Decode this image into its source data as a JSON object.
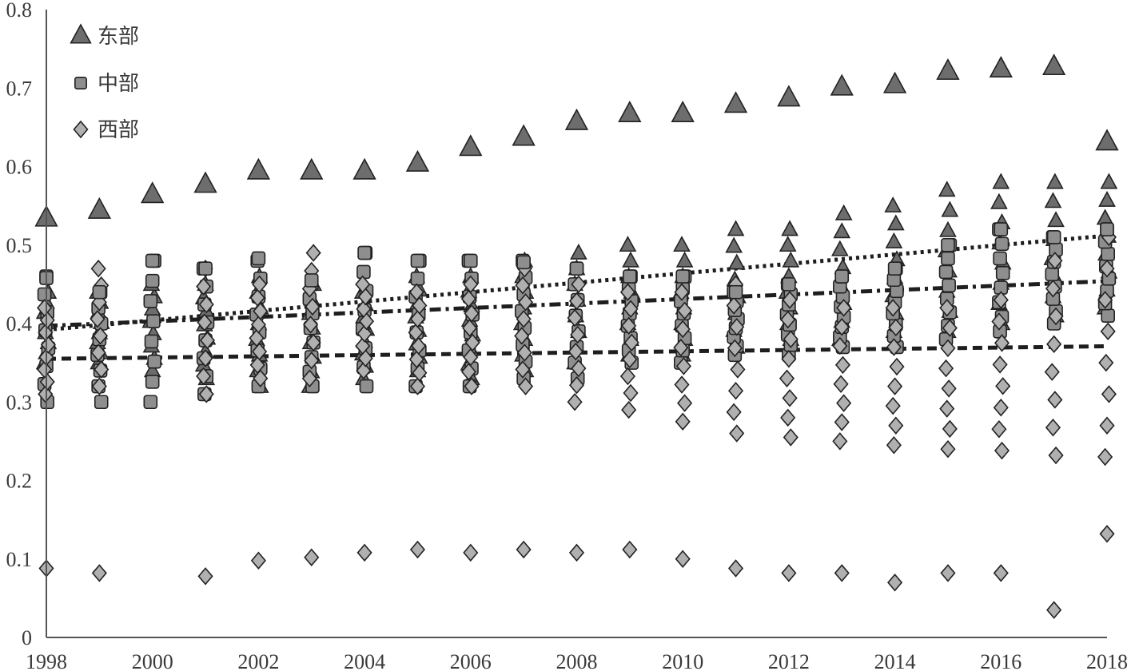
{
  "chart_data": {
    "type": "scatter",
    "title": "",
    "xlabel": "",
    "ylabel": "",
    "x_ticks": [
      "1998",
      "2000",
      "2002",
      "2004",
      "2006",
      "2008",
      "2010",
      "2012",
      "2014",
      "2016",
      "2018"
    ],
    "y_ticks": [
      "0",
      "0.1",
      "0.2",
      "0.3",
      "0.4",
      "0.5",
      "0.6",
      "0.7",
      "0.8"
    ],
    "xlim": [
      1998,
      2018
    ],
    "ylim": [
      0,
      0.8
    ],
    "grid": false,
    "legend_position": "top-left",
    "legend": [
      {
        "label": "东部",
        "marker": "triangle"
      },
      {
        "label": "中部",
        "marker": "square"
      },
      {
        "label": "西部",
        "marker": "diamond"
      }
    ],
    "colors": {
      "east": "#6d6d6d",
      "central": "#8e8e8e",
      "west": "#b0b0b0",
      "stroke": "#222222",
      "trend": "#1e1e1e"
    },
    "series": [
      {
        "name": "东部",
        "marker": "triangle",
        "x": [
          1998,
          1999,
          2000,
          2001,
          2002,
          2003,
          2004,
          2005,
          2006,
          2007,
          2008,
          2009,
          2010,
          2011,
          2012,
          2013,
          2014,
          2015,
          2016,
          2017,
          2018
        ],
        "values": [
          0.535,
          0.545,
          0.565,
          0.578,
          0.595,
          0.595,
          0.595,
          0.605,
          0.625,
          0.638,
          0.658,
          0.668,
          0.668,
          0.68,
          0.688,
          0.702,
          0.705,
          0.722,
          0.725,
          0.728,
          0.632
        ],
        "spread": [
          [
            0.35,
            0.44
          ],
          [
            0.35,
            0.44
          ],
          [
            0.34,
            0.45
          ],
          [
            0.33,
            0.45
          ],
          [
            0.32,
            0.46
          ],
          [
            0.32,
            0.45
          ],
          [
            0.33,
            0.44
          ],
          [
            0.34,
            0.46
          ],
          [
            0.33,
            0.46
          ],
          [
            0.34,
            0.48
          ],
          [
            0.35,
            0.49
          ],
          [
            0.36,
            0.5
          ],
          [
            0.36,
            0.5
          ],
          [
            0.37,
            0.52
          ],
          [
            0.38,
            0.52
          ],
          [
            0.38,
            0.54
          ],
          [
            0.39,
            0.55
          ],
          [
            0.39,
            0.57
          ],
          [
            0.4,
            0.58
          ],
          [
            0.41,
            0.58
          ],
          [
            0.42,
            0.58
          ]
        ]
      },
      {
        "name": "中部",
        "marker": "square",
        "x": [
          1998,
          1999,
          2000,
          2001,
          2002,
          2003,
          2004,
          2005,
          2006,
          2007,
          2008,
          2009,
          2010,
          2011,
          2012,
          2013,
          2014,
          2015,
          2016,
          2017,
          2018
        ],
        "values": [
          0.458,
          0.44,
          0.48,
          0.47,
          0.483,
          0.455,
          0.49,
          0.48,
          0.48,
          0.478,
          0.47,
          0.46,
          0.46,
          0.44,
          0.45,
          0.46,
          0.47,
          0.5,
          0.52,
          0.51,
          0.52
        ],
        "spread": [
          [
            0.3,
            0.46
          ],
          [
            0.3,
            0.44
          ],
          [
            0.3,
            0.48
          ],
          [
            0.31,
            0.47
          ],
          [
            0.32,
            0.48
          ],
          [
            0.32,
            0.45
          ],
          [
            0.32,
            0.49
          ],
          [
            0.32,
            0.48
          ],
          [
            0.32,
            0.48
          ],
          [
            0.33,
            0.48
          ],
          [
            0.33,
            0.47
          ],
          [
            0.35,
            0.46
          ],
          [
            0.35,
            0.46
          ],
          [
            0.36,
            0.44
          ],
          [
            0.36,
            0.45
          ],
          [
            0.37,
            0.46
          ],
          [
            0.37,
            0.47
          ],
          [
            0.38,
            0.5
          ],
          [
            0.39,
            0.52
          ],
          [
            0.4,
            0.51
          ],
          [
            0.41,
            0.52
          ]
        ]
      },
      {
        "name": "西部",
        "marker": "diamond",
        "x": [
          1998,
          1999,
          2001,
          2002,
          2003,
          2004,
          2005,
          2006,
          2007,
          2008,
          2009,
          2010,
          2011,
          2012,
          2013,
          2014,
          2015,
          2016,
          2017,
          2018
        ],
        "values": [
          0.088,
          0.082,
          0.078,
          0.098,
          0.102,
          0.108,
          0.112,
          0.108,
          0.112,
          0.108,
          0.112,
          0.1,
          0.088,
          0.082,
          0.082,
          0.07,
          0.082,
          0.082,
          0.035,
          0.132
        ],
        "spread": [
          [
            0.31,
            0.42
          ],
          [
            0.32,
            0.47
          ],
          [
            0.31,
            0.47
          ],
          [
            0.33,
            0.45
          ],
          [
            0.33,
            0.49
          ],
          [
            0.34,
            0.45
          ],
          [
            0.32,
            0.44
          ],
          [
            0.32,
            0.45
          ],
          [
            0.32,
            0.47
          ],
          [
            0.3,
            0.45
          ],
          [
            0.29,
            0.44
          ],
          [
            0.275,
            0.44
          ],
          [
            0.26,
            0.45
          ],
          [
            0.255,
            0.43
          ],
          [
            0.25,
            0.42
          ],
          [
            0.245,
            0.42
          ],
          [
            0.24,
            0.42
          ],
          [
            0.238,
            0.43
          ],
          [
            0.232,
            0.48
          ],
          [
            0.23,
            0.51
          ]
        ]
      }
    ],
    "trendlines": [
      {
        "name": "东部",
        "style": "dotted",
        "x": [
          1998,
          2018
        ],
        "values": [
          0.392,
          0.512
        ]
      },
      {
        "name": "中部",
        "style": "dash-dot",
        "x": [
          1998,
          2018
        ],
        "values": [
          0.397,
          0.454
        ]
      },
      {
        "name": "西部",
        "style": "dashed",
        "x": [
          1998,
          2018
        ],
        "values": [
          0.355,
          0.371
        ]
      }
    ]
  }
}
